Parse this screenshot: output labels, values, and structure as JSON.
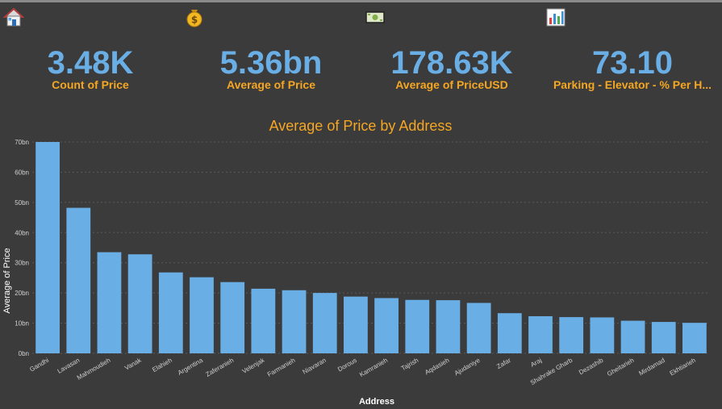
{
  "kpis": [
    {
      "icon": "house-icon",
      "value": "3.48K",
      "label": "Count of Price"
    },
    {
      "icon": "money-bag-icon",
      "value": "5.36bn",
      "label": "Average of Price"
    },
    {
      "icon": "banknote-icon",
      "value": "178.63K",
      "label": "Average of PriceUSD"
    },
    {
      "icon": "bar-chart-icon",
      "value": "73.10",
      "label": "Parking - Elevator - % Per H..."
    }
  ],
  "colors": {
    "accent": "#6aaee6",
    "title": "#f5a623",
    "background": "#3b3b3b"
  },
  "chart_data": {
    "type": "bar",
    "title": "Average of Price by Address",
    "xlabel": "Address",
    "ylabel": "Average of Price",
    "ylim": [
      0,
      70
    ],
    "yticks": [
      "0bn",
      "10bn",
      "20bn",
      "30bn",
      "40bn",
      "50bn",
      "60bn",
      "70bn"
    ],
    "grid": true,
    "categories": [
      "Gandhi",
      "Lavasan",
      "Mahmoudieh",
      "Vanak",
      "Elahieh",
      "Argentina",
      "Zaferanieh",
      "Velenjak",
      "Farmanieh",
      "Niavaran",
      "Dorous",
      "Kamranieh",
      "Tajrish",
      "Aqdasieh",
      "Ajudaniye",
      "Zafar",
      "Araj",
      "Shahrake Gharb",
      "Dezashib",
      "Gheitarieh",
      "Mirdamad",
      "Ekhtiarieh"
    ],
    "values": [
      70.0,
      48.2,
      33.5,
      32.8,
      26.8,
      25.2,
      23.6,
      21.4,
      20.9,
      20.0,
      18.8,
      18.3,
      17.7,
      17.6,
      16.7,
      13.3,
      12.3,
      12.0,
      11.9,
      10.8,
      10.4,
      10.1
    ]
  }
}
